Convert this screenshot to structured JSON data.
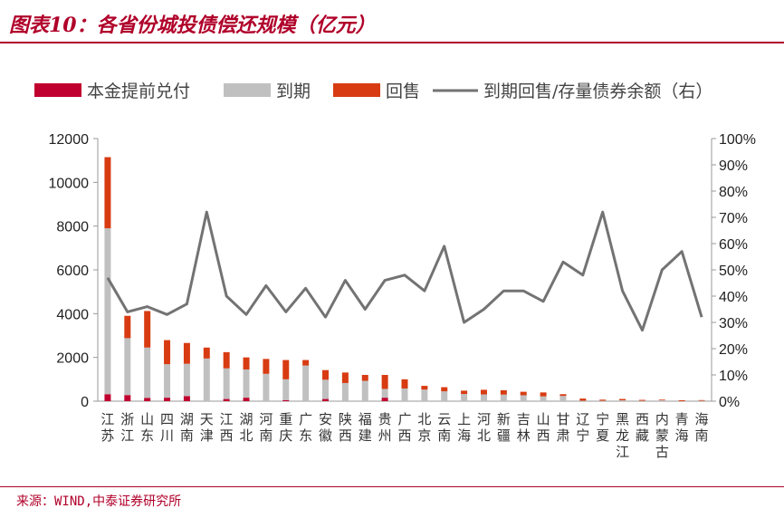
{
  "header": {
    "title": "图表10：各省份城投债偿还规模（亿元）"
  },
  "footer": {
    "source": "来源：WIND,中泰证券研究所"
  },
  "colors": {
    "accent": "#b0002a",
    "early": "#c0002f",
    "maturity": "#c0c0c0",
    "putback": "#d83b12",
    "ratio": "#737373"
  },
  "chart_data": {
    "type": "bar",
    "stacked": true,
    "categories": [
      "江苏",
      "浙江",
      "山东",
      "四川",
      "湖南",
      "天津",
      "江西",
      "湖北",
      "河南",
      "重庆",
      "广东",
      "安徽",
      "陕西",
      "福建",
      "贵州",
      "广西",
      "北京",
      "云南",
      "上海",
      "河北",
      "新疆",
      "吉林",
      "山西",
      "甘肃",
      "辽宁",
      "宁夏",
      "黑龙江",
      "西藏",
      "内蒙古",
      "青海",
      "海南"
    ],
    "series": [
      {
        "name": "本金提前兑付",
        "axis": "left",
        "values": [
          320,
          280,
          150,
          160,
          230,
          0,
          100,
          160,
          0,
          50,
          0,
          100,
          0,
          0,
          160,
          0,
          0,
          0,
          0,
          0,
          0,
          0,
          0,
          0,
          0,
          0,
          0,
          0,
          0,
          0,
          0
        ]
      },
      {
        "name": "到期",
        "axis": "left",
        "values": [
          7580,
          2600,
          2300,
          1530,
          1480,
          1950,
          1400,
          1290,
          1250,
          950,
          1630,
          880,
          830,
          930,
          400,
          580,
          530,
          450,
          330,
          310,
          300,
          270,
          220,
          240,
          20,
          20,
          40,
          20,
          40,
          0,
          20
        ]
      },
      {
        "name": "回售",
        "axis": "left",
        "values": [
          3250,
          1020,
          1670,
          1100,
          950,
          500,
          740,
          550,
          680,
          880,
          250,
          440,
          480,
          270,
          640,
          420,
          170,
          190,
          150,
          210,
          200,
          160,
          180,
          80,
          100,
          50,
          60,
          40,
          30,
          40,
          30
        ]
      },
      {
        "name": "到期回售/存量债券余额（右）",
        "axis": "right",
        "type": "line",
        "values": [
          0.47,
          0.34,
          0.36,
          0.33,
          0.37,
          0.72,
          0.4,
          0.33,
          0.44,
          0.34,
          0.43,
          0.32,
          0.46,
          0.35,
          0.46,
          0.48,
          0.42,
          0.59,
          0.3,
          0.35,
          0.42,
          0.42,
          0.38,
          0.53,
          0.48,
          0.72,
          0.42,
          0.27,
          0.5,
          0.57,
          0.32
        ]
      }
    ],
    "y_left": {
      "min": 0,
      "max": 12000,
      "ticks": [
        "0",
        "2000",
        "4000",
        "6000",
        "8000",
        "10000",
        "12000"
      ]
    },
    "y_right": {
      "min": 0,
      "max": 1,
      "ticks": [
        "0%",
        "10%",
        "20%",
        "30%",
        "40%",
        "50%",
        "60%",
        "70%",
        "80%",
        "90%",
        "100%"
      ]
    },
    "legend_position": "top",
    "grid": false
  }
}
